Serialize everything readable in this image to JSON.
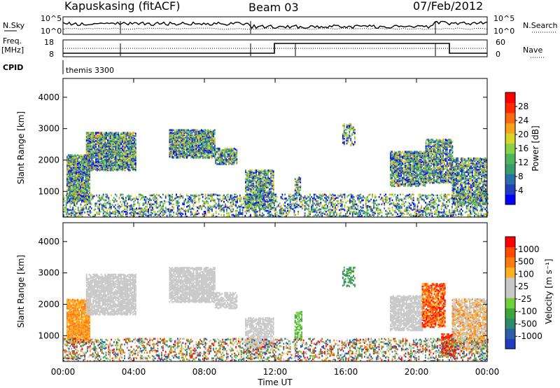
{
  "header": {
    "station": "Kapuskasing (fitACF)",
    "beam": "Beam 03",
    "date": "07/Feb/2012"
  },
  "summary": {
    "nsky_label": "N.Sky",
    "nsky_ticks": [
      "10^5",
      "10^0"
    ],
    "nsearch_label": "N.Search",
    "freq_label_1": "Freq.",
    "freq_label_2": "[MHz]",
    "freq_ticks": [
      "18",
      "8"
    ],
    "nave_label": "Nave",
    "nave_ticks": [
      "60",
      "0"
    ],
    "cpid_label": "CPID",
    "cpid_value": "themis 3300"
  },
  "chart_data": [
    {
      "type": "heatmap",
      "name": "power",
      "ylabel": "Slant Range [km]",
      "y_ticks": [
        "4000",
        "3000",
        "2000",
        "1000"
      ],
      "y_tick_values": [
        4000,
        3000,
        2000,
        1000
      ],
      "ylim": [
        180,
        4600
      ],
      "x_ticks": [
        "00:00",
        "04:00",
        "08:00",
        "12:00",
        "16:00",
        "20:00",
        "00:00"
      ],
      "x_tick_values": [
        0,
        4,
        8,
        12,
        16,
        20,
        24
      ],
      "xlim": [
        0,
        24
      ],
      "colorbar": {
        "label": "Power [dB]",
        "tick_labels": [
          "28",
          "24",
          "20",
          "16",
          "12",
          "8",
          "4"
        ],
        "colors": [
          "#0000ff",
          "#1f3fbf",
          "#2a6fa8",
          "#3a9b6e",
          "#4fb55a",
          "#8ad14a",
          "#d7d42a",
          "#f7a21a",
          "#f56a12",
          "#ff2a00",
          "#ff0000"
        ]
      },
      "regions": [
        {
          "t0": 0.2,
          "t1": 1.5,
          "r0": 700,
          "r1": 2200,
          "p": 0.75
        },
        {
          "t0": 1.3,
          "t1": 4.1,
          "r0": 1700,
          "r1": 2900,
          "p": 0.7
        },
        {
          "t0": 6.0,
          "t1": 8.6,
          "r0": 2100,
          "r1": 3000,
          "p": 0.7
        },
        {
          "t0": 8.6,
          "t1": 9.8,
          "r0": 1900,
          "r1": 2400,
          "p": 0.6
        },
        {
          "t0": 10.3,
          "t1": 11.9,
          "r0": 500,
          "r1": 1700,
          "p": 0.55
        },
        {
          "t0": 13.1,
          "t1": 13.4,
          "r0": 900,
          "r1": 1500,
          "p": 0.5
        },
        {
          "t0": 15.8,
          "t1": 16.5,
          "r0": 2500,
          "r1": 3200,
          "p": 0.35
        },
        {
          "t0": 18.5,
          "t1": 20.5,
          "r0": 1200,
          "r1": 2300,
          "p": 0.65
        },
        {
          "t0": 20.5,
          "t1": 22.0,
          "r0": 1300,
          "r1": 2700,
          "p": 0.55
        },
        {
          "t0": 22.0,
          "t1": 24.0,
          "r0": 600,
          "r1": 2100,
          "p": 0.55
        },
        {
          "t0": 0.0,
          "t1": 24.0,
          "r0": 200,
          "r1": 950,
          "p": 0.28
        }
      ]
    },
    {
      "type": "heatmap",
      "name": "velocity",
      "ylabel": "Slant Range [km]",
      "y_ticks": [
        "4000",
        "3000",
        "2000",
        "1000"
      ],
      "y_tick_values": [
        4000,
        3000,
        2000,
        1000
      ],
      "ylim": [
        180,
        4600
      ],
      "x_ticks": [
        "00:00",
        "04:00",
        "08:00",
        "12:00",
        "16:00",
        "20:00",
        "00:00"
      ],
      "x_tick_values": [
        0,
        4,
        8,
        12,
        16,
        20,
        24
      ],
      "xlim": [
        0,
        24
      ],
      "xlabel": "Time UT",
      "colorbar": {
        "label": "Velocity [m s⁻¹]",
        "tick_labels": [
          "1000",
          "500",
          "100",
          "25",
          "-25",
          "-100",
          "-500",
          "-1000"
        ],
        "colors": [
          "#1d3fbf",
          "#2a5fa8",
          "#2e8a6a",
          "#3fa53a",
          "#6fd03a",
          "#c8c8c8",
          "#c8c8c8",
          "#ffb020",
          "#ff7a10",
          "#ff4a00",
          "#ff0000"
        ]
      },
      "regions": [
        {
          "t0": 0.2,
          "t1": 1.5,
          "r0": 800,
          "r1": 2200,
          "p": 0.7,
          "c": [
            7,
            8
          ]
        },
        {
          "t0": 1.3,
          "t1": 4.1,
          "r0": 1700,
          "r1": 3000,
          "p": 0.65,
          "c": [
            5,
            6
          ]
        },
        {
          "t0": 6.0,
          "t1": 8.6,
          "r0": 2100,
          "r1": 3200,
          "p": 0.65,
          "c": [
            5,
            6
          ]
        },
        {
          "t0": 8.6,
          "t1": 9.8,
          "r0": 1900,
          "r1": 2400,
          "p": 0.55,
          "c": [
            5,
            6
          ]
        },
        {
          "t0": 10.3,
          "t1": 11.9,
          "r0": 600,
          "r1": 1600,
          "p": 0.55,
          "c": [
            5,
            6
          ]
        },
        {
          "t0": 13.1,
          "t1": 13.5,
          "r0": 900,
          "r1": 1800,
          "p": 0.45,
          "c": [
            3,
            4
          ]
        },
        {
          "t0": 15.8,
          "t1": 16.5,
          "r0": 2600,
          "r1": 3200,
          "p": 0.3,
          "c": [
            2,
            3
          ]
        },
        {
          "t0": 18.5,
          "t1": 20.3,
          "r0": 1200,
          "r1": 2300,
          "p": 0.6,
          "c": [
            5,
            6
          ]
        },
        {
          "t0": 20.3,
          "t1": 21.6,
          "r0": 1300,
          "r1": 2700,
          "p": 0.6,
          "c": [
            7,
            10
          ]
        },
        {
          "t0": 21.4,
          "t1": 22.2,
          "r0": 400,
          "r1": 1100,
          "p": 0.7,
          "c": [
            9,
            10
          ]
        },
        {
          "t0": 22.0,
          "t1": 24.0,
          "r0": 600,
          "r1": 2200,
          "p": 0.55,
          "c": [
            5,
            8
          ]
        },
        {
          "t0": 0.0,
          "t1": 24.0,
          "r0": 200,
          "r1": 950,
          "p": 0.25,
          "c": [
            0,
            10
          ]
        }
      ]
    }
  ]
}
